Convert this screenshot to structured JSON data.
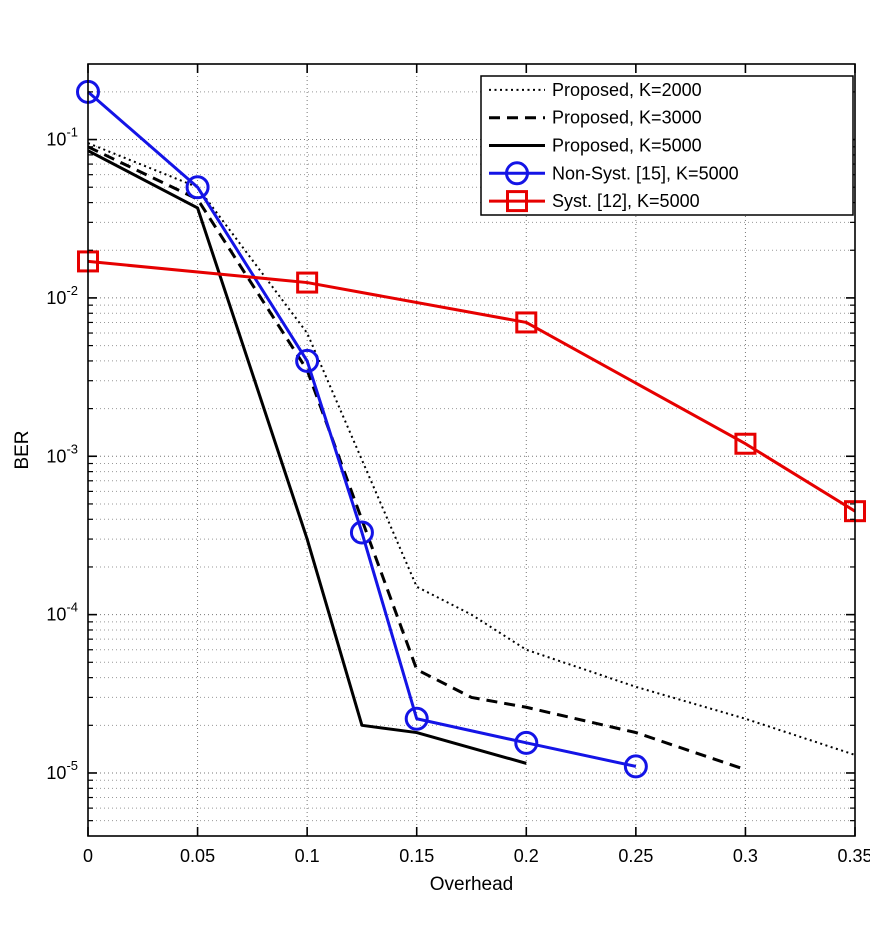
{
  "figure": {
    "background": "#ffffff",
    "axes_color": "#000000",
    "grid_major_color": "#777777",
    "grid_minor_color": "#999999"
  },
  "chart_data": {
    "type": "line",
    "title": "",
    "xlabel": "Overhead",
    "ylabel": "BER",
    "xlim": [
      0,
      0.35
    ],
    "xticks": [
      0,
      0.05,
      0.1,
      0.15,
      0.2,
      0.25,
      0.3,
      0.35
    ],
    "xtick_labels": [
      "0",
      "0.05",
      "0.1",
      "0.15",
      "0.2",
      "0.25",
      "0.3",
      "0.35"
    ],
    "yscale": "log",
    "ylim": [
      4e-06,
      0.3
    ],
    "ytick_exponents": [
      -1,
      -2,
      -3,
      -4,
      -5
    ],
    "grid": true,
    "y_minor_grid": true,
    "legend_position": "top-right",
    "series": [
      {
        "name": "Proposed, K=2000",
        "color": "#000000",
        "line_style": "dotted",
        "line_width": 2,
        "marker": "none",
        "x": [
          0,
          0.05,
          0.1,
          0.15,
          0.175,
          0.2,
          0.25,
          0.3,
          0.35
        ],
        "y": [
          0.095,
          0.05,
          0.006,
          0.00015,
          0.0001,
          6e-05,
          3.5e-05,
          2.2e-05,
          1.3e-05
        ]
      },
      {
        "name": "Proposed, K=3000",
        "color": "#000000",
        "line_style": "dashed",
        "line_width": 3,
        "marker": "none",
        "x": [
          0,
          0.05,
          0.1,
          0.15,
          0.175,
          0.2,
          0.25,
          0.3
        ],
        "y": [
          0.09,
          0.042,
          0.0035,
          4.5e-05,
          3e-05,
          2.6e-05,
          1.8e-05,
          1.05e-05
        ]
      },
      {
        "name": "Proposed, K=5000",
        "color": "#000000",
        "line_style": "solid",
        "line_width": 3,
        "marker": "none",
        "x": [
          0,
          0.05,
          0.1,
          0.125,
          0.15,
          0.2
        ],
        "y": [
          0.085,
          0.037,
          0.0003,
          2e-05,
          1.8e-05,
          1.15e-05
        ]
      },
      {
        "name": "Non-Syst. [15], K=5000",
        "color": "#1414e6",
        "line_style": "solid",
        "line_width": 3,
        "marker": "circle",
        "marker_size": 21,
        "x": [
          0,
          0.05,
          0.1,
          0.125,
          0.15,
          0.2,
          0.25
        ],
        "y": [
          0.2,
          0.05,
          0.004,
          0.00033,
          2.2e-05,
          1.55e-05,
          1.1e-05
        ]
      },
      {
        "name": "Syst. [12], K=5000",
        "color": "#e60000",
        "line_style": "solid",
        "line_width": 3,
        "marker": "square",
        "marker_size": 19,
        "x": [
          0,
          0.1,
          0.2,
          0.3,
          0.35
        ],
        "y": [
          0.017,
          0.0125,
          0.007,
          0.0012,
          0.00045
        ]
      }
    ]
  }
}
